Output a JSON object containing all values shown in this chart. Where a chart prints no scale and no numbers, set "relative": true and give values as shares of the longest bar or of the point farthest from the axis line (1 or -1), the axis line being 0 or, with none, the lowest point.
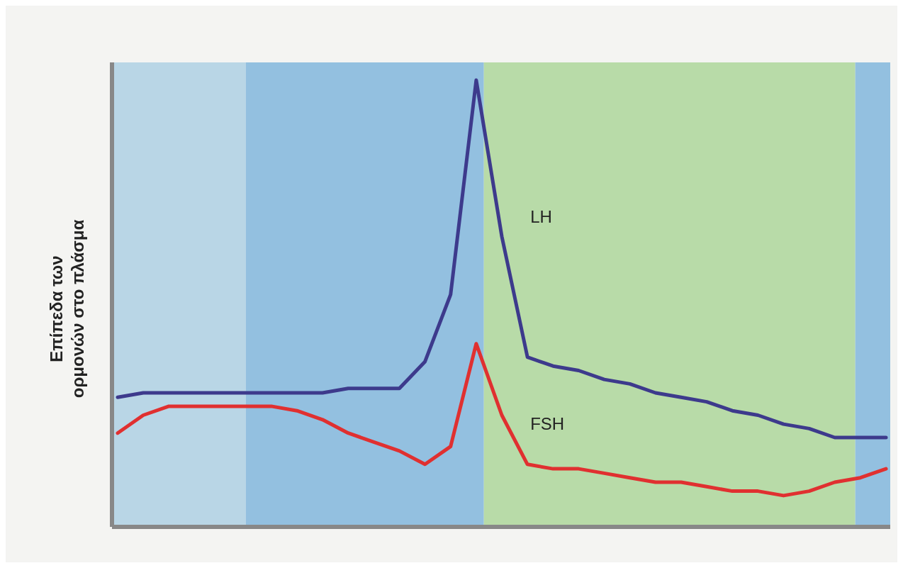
{
  "chart_data": {
    "type": "line",
    "relative": true,
    "ylabel": "Επίπεδα των\nορμονών στο πλάσμα",
    "categories": [
      null,
      null,
      null,
      null,
      null,
      null,
      null,
      null,
      null,
      null,
      null,
      null,
      null,
      null,
      null,
      null,
      null,
      null,
      null,
      null,
      null,
      null,
      null,
      null,
      null,
      null,
      null,
      null,
      null,
      null,
      null
    ],
    "series": [
      {
        "name": "LH",
        "color": "#3d3a8c",
        "values": [
          0.29,
          0.3,
          0.3,
          0.3,
          0.3,
          0.3,
          0.3,
          0.3,
          0.3,
          0.31,
          0.31,
          0.31,
          0.37,
          0.52,
          1.0,
          0.65,
          0.38,
          0.36,
          0.35,
          0.33,
          0.32,
          0.3,
          0.29,
          0.28,
          0.26,
          0.25,
          0.23,
          0.22,
          0.2,
          0.2,
          0.2
        ]
      },
      {
        "name": "FSH",
        "color": "#e03030",
        "values": [
          0.21,
          0.25,
          0.27,
          0.27,
          0.27,
          0.27,
          0.27,
          0.26,
          0.24,
          0.21,
          0.19,
          0.17,
          0.14,
          0.18,
          0.41,
          0.25,
          0.14,
          0.13,
          0.13,
          0.12,
          0.11,
          0.1,
          0.1,
          0.09,
          0.08,
          0.08,
          0.07,
          0.08,
          0.1,
          0.11,
          0.13
        ]
      }
    ]
  }
}
